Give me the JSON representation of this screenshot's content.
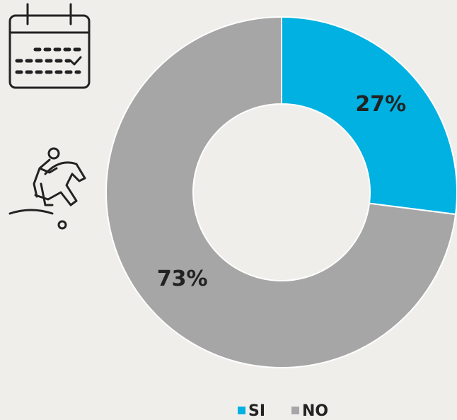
{
  "chart_data": {
    "type": "donut",
    "categories": [
      "SI",
      "NO"
    ],
    "values": [
      27,
      73
    ],
    "value_labels": [
      "27%",
      "73%"
    ],
    "colors": [
      "#00b1e1",
      "#a6a6a6"
    ],
    "legend": "bottom"
  }
}
